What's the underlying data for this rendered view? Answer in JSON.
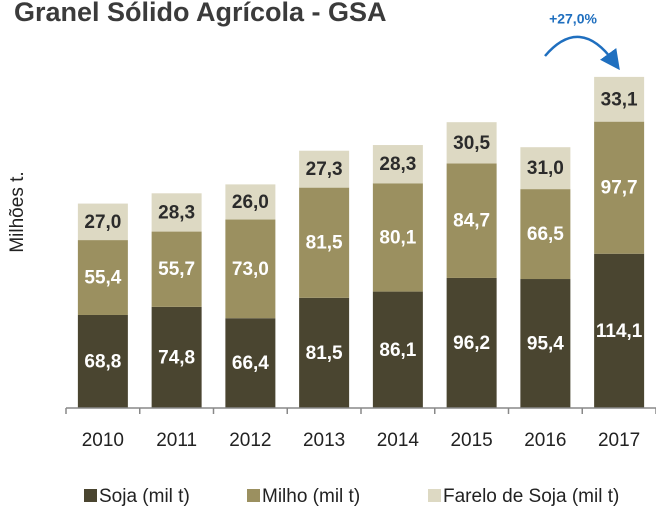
{
  "chart_data": {
    "type": "stacked_bar",
    "title": "Granel Sólido Agrícola - GSA",
    "y_label": "Milhões t.",
    "annotation": "+27,0%",
    "categories": [
      "2010",
      "2011",
      "2012",
      "2013",
      "2014",
      "2015",
      "2016",
      "2017"
    ],
    "series": [
      {
        "name": "Soja (mil t)",
        "color": "#4a4530",
        "label_color": "#ffffff",
        "values": [
          68.8,
          74.8,
          66.4,
          81.5,
          86.1,
          96.2,
          95.4,
          114.1
        ],
        "value_labels": [
          "68,8",
          "74,8",
          "66,4",
          "81,5",
          "86,1",
          "96,2",
          "95,4",
          "114,1"
        ]
      },
      {
        "name": "Milho (mil t)",
        "color": "#9b9060",
        "label_color": "#ffffff",
        "values": [
          55.4,
          55.7,
          73.0,
          81.5,
          80.1,
          84.7,
          66.5,
          97.7
        ],
        "value_labels": [
          "55,4",
          "55,7",
          "73,0",
          "81,5",
          "80,1",
          "84,7",
          "66,5",
          "97,7"
        ]
      },
      {
        "name": "Farelo de Soja (mil t)",
        "color": "#ddd9c3",
        "label_color": "#2b2b2b",
        "values": [
          27.0,
          28.3,
          26.0,
          27.3,
          28.3,
          30.5,
          31.0,
          33.1
        ],
        "value_labels": [
          "27,0",
          "28,3",
          "26,0",
          "27,3",
          "28,3",
          "30,5",
          "31,0",
          "33,1"
        ]
      }
    ],
    "ylim": [
      0,
      250
    ],
    "legend": "bottom"
  }
}
